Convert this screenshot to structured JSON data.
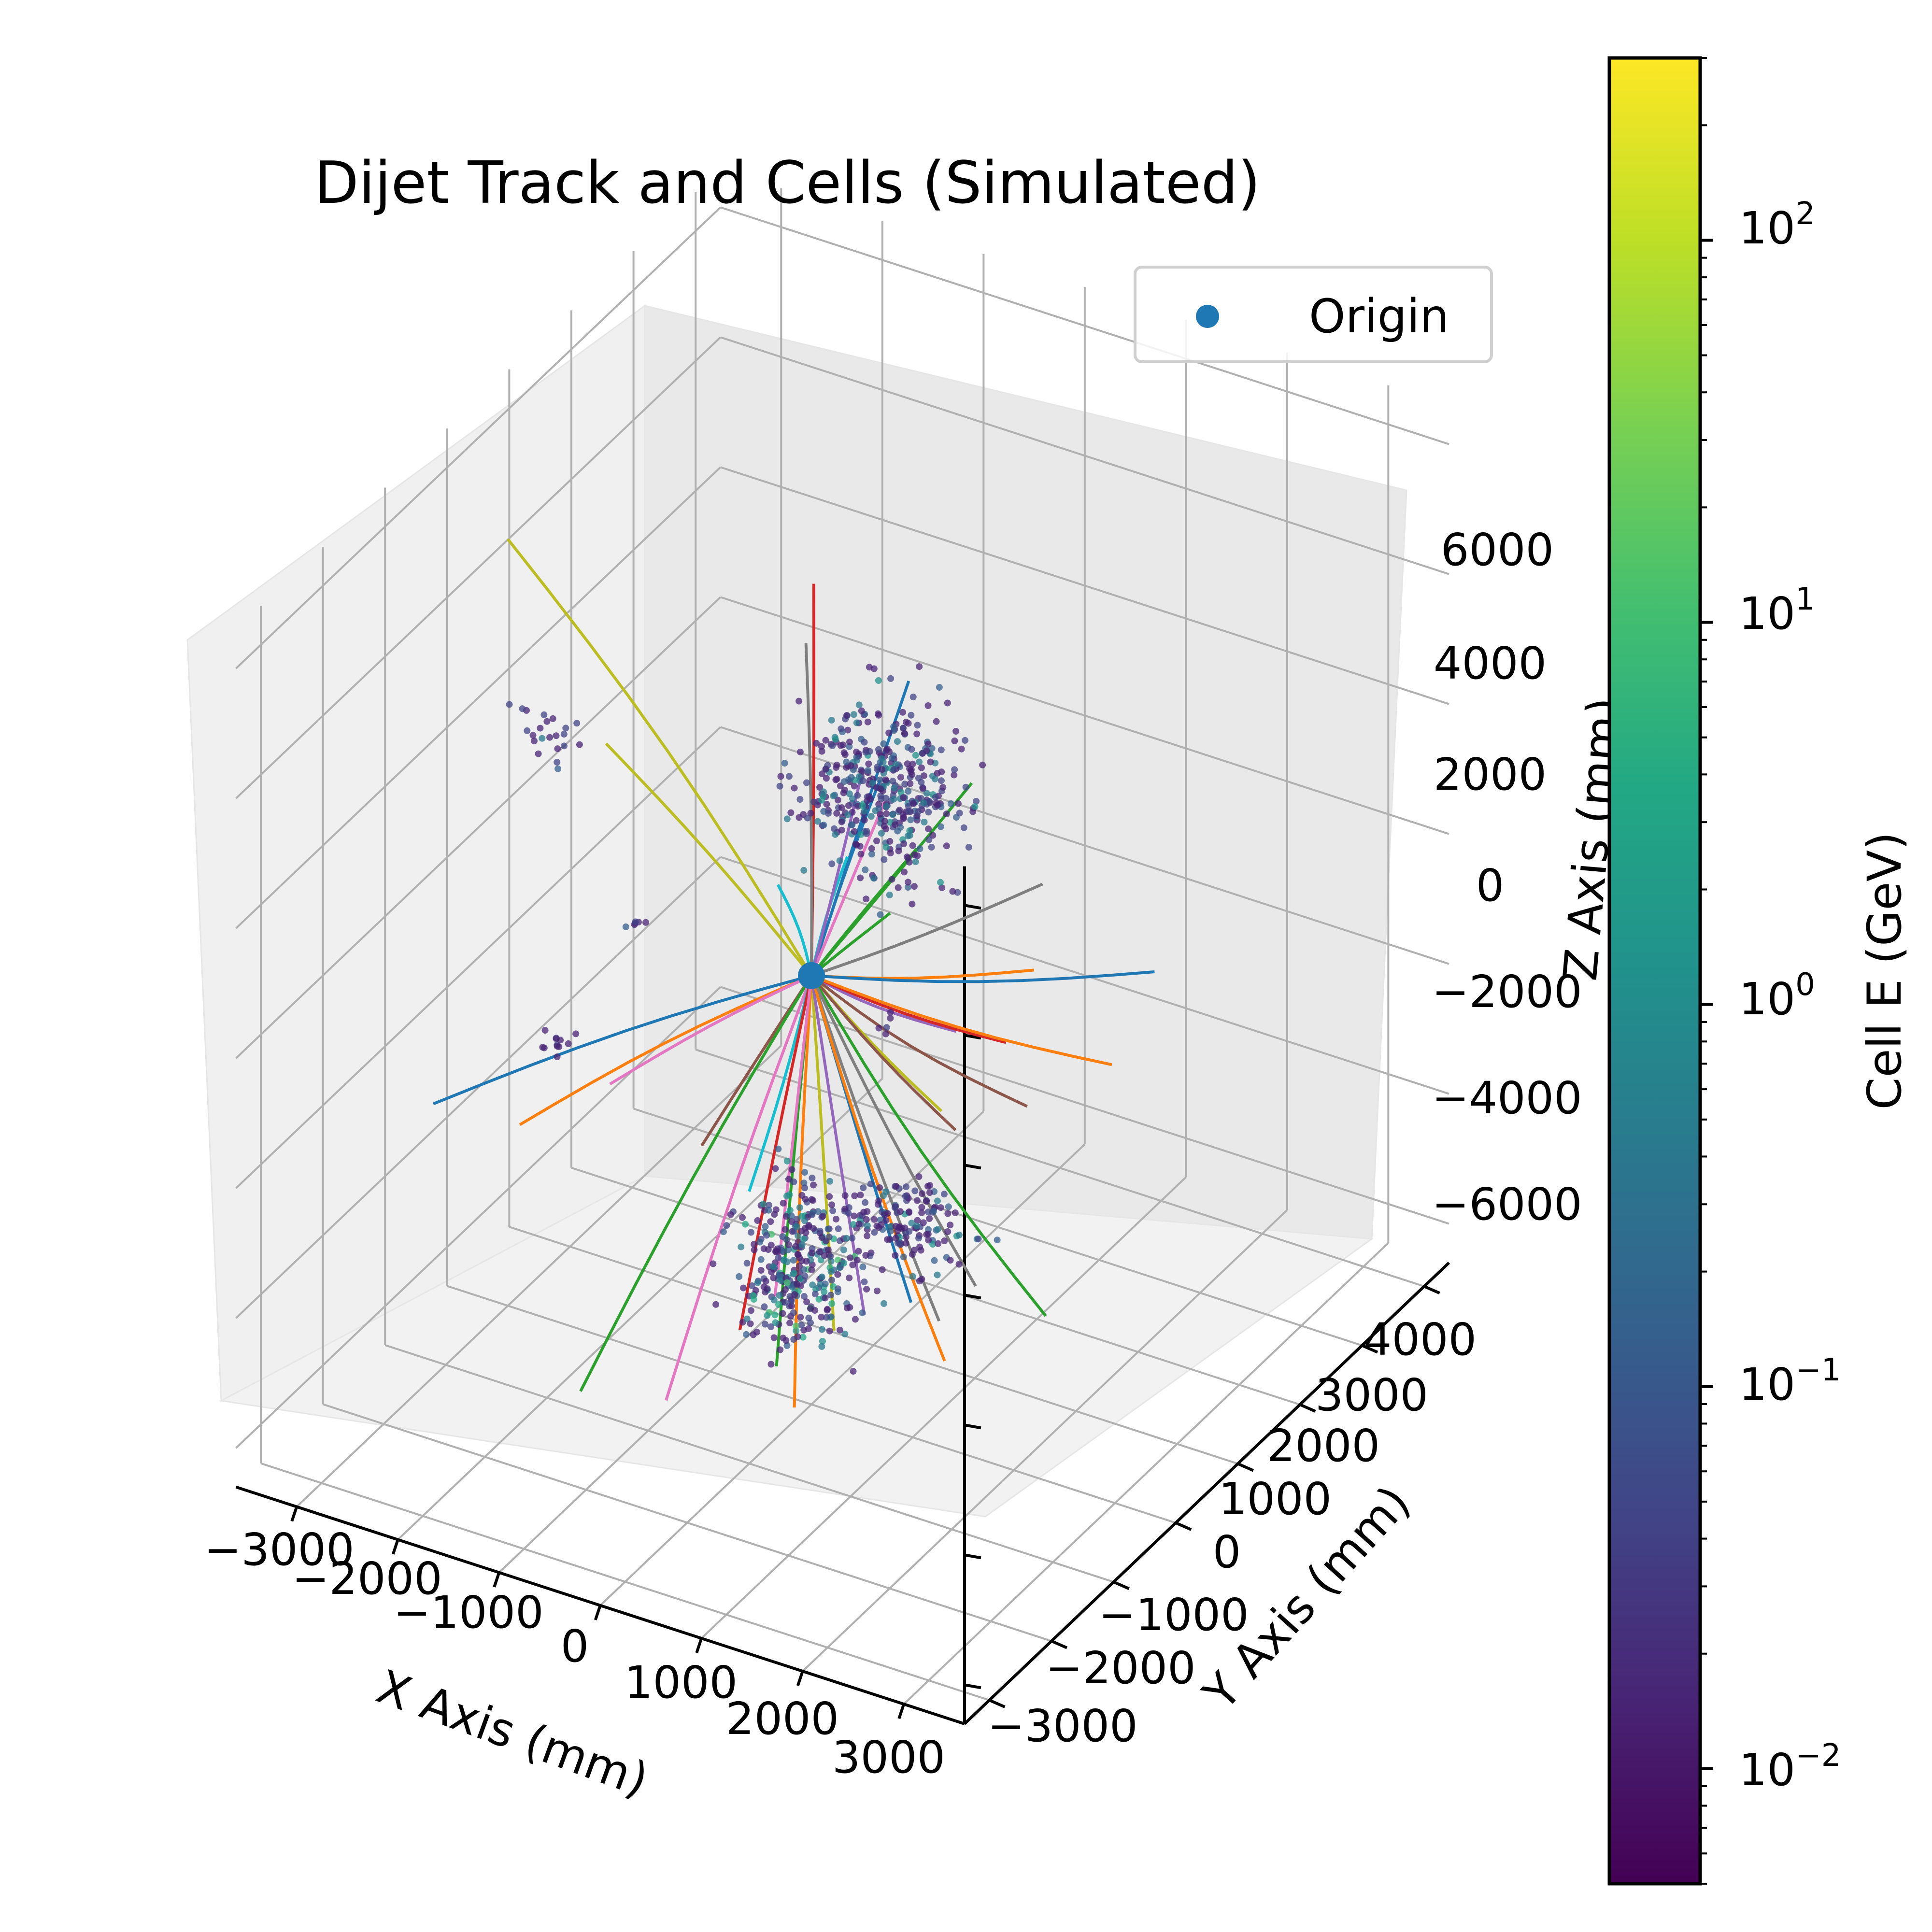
{
  "chart_data": {
    "type": "scatter",
    "title": "Dijet Track and Cells (Simulated)",
    "xlabel": "X Axis (mm)",
    "ylabel": "Y Axis (mm)",
    "zlabel": "Z Axis (mm)",
    "x_ticks": [
      "−3000",
      "−2000",
      "−1000",
      "0",
      "1000",
      "2000",
      "3000"
    ],
    "y_ticks": [
      "−3000",
      "−2000",
      "−1000",
      "0",
      "1000",
      "2000",
      "3000",
      "4000"
    ],
    "z_ticks": [
      "−6000",
      "−4000",
      "−2000",
      "0",
      "2000",
      "4000",
      "6000"
    ],
    "xlim": [
      -3600,
      3600
    ],
    "ylim": [
      -3400,
      4400
    ],
    "zlim": [
      -6600,
      6600
    ],
    "grid": true,
    "legend": {
      "position": "top-right",
      "entries": [
        {
          "label": "Origin",
          "color": "#1f77b4"
        }
      ]
    },
    "colorbar": {
      "label": "Cell E (GeV)",
      "scale": "log",
      "range": [
        0.005,
        300
      ],
      "ticks": [
        {
          "value": 0.01,
          "base": "10",
          "exp": "−2"
        },
        {
          "value": 0.1,
          "base": "10",
          "exp": "−1"
        },
        {
          "value": 1,
          "base": "10",
          "exp": "0"
        },
        {
          "value": 10,
          "base": "10",
          "exp": "1"
        },
        {
          "value": 100,
          "base": "10",
          "exp": "2"
        }
      ],
      "colormap": "viridis"
    },
    "origin": {
      "x": 0,
      "y": 0,
      "z": 0,
      "color": "#1f77b4"
    },
    "cell_clusters": [
      {
        "x": 400,
        "y": 500,
        "z": 2600,
        "spread": [
          700,
          600,
          1200
        ],
        "count": 420,
        "energy_range": [
          0.01,
          1
        ]
      },
      {
        "x": -200,
        "y": 100,
        "z": -4600,
        "spread": [
          500,
          500,
          1200
        ],
        "count": 320,
        "energy_range": [
          0.01,
          10
        ]
      },
      {
        "x": 500,
        "y": 700,
        "z": -4200,
        "spread": [
          600,
          400,
          600
        ],
        "count": 150,
        "energy_range": [
          0.01,
          1
        ]
      },
      {
        "x": -2600,
        "y": 0,
        "z": 2400,
        "spread": [
          300,
          300,
          400
        ],
        "count": 22,
        "energy_range": [
          0.01,
          0.3
        ]
      },
      {
        "x": -2200,
        "y": -500,
        "z": -1700,
        "spread": [
          150,
          150,
          200
        ],
        "count": 12,
        "energy_range": [
          0.01,
          0.1
        ]
      },
      {
        "x": -1500,
        "y": -400,
        "z": 400,
        "spread": [
          100,
          100,
          120
        ],
        "count": 6,
        "energy_range": [
          0.01,
          0.1
        ]
      },
      {
        "x": 1200,
        "y": -700,
        "z": 500,
        "spread": [
          100,
          100,
          120
        ],
        "count": 5,
        "energy_range": [
          0.01,
          0.1
        ]
      }
    ],
    "tracks": [
      {
        "color": "#bcbd22",
        "end": [
          -3000,
          0,
          5200
        ]
      },
      {
        "color": "#bcbd22",
        "end": [
          -1600,
          -700,
          3400
        ]
      },
      {
        "color": "#d62728",
        "end": [
          -100,
          200,
          5800
        ]
      },
      {
        "color": "#7f7f7f",
        "end": [
          -300,
          400,
          4600
        ]
      },
      {
        "color": "#1f77b4",
        "end": [
          900,
          100,
          4900
        ]
      },
      {
        "color": "#1f77b4",
        "end": [
          800,
          -200,
          3600
        ]
      },
      {
        "color": "#2ca02c",
        "end": [
          1400,
          300,
          3400
        ]
      },
      {
        "color": "#2ca02c",
        "end": [
          1100,
          -100,
          2600
        ]
      },
      {
        "color": "#17becf",
        "end": [
          600,
          -400,
          2500
        ]
      },
      {
        "color": "#7f7f7f",
        "end": [
          2100,
          300,
          2200
        ]
      },
      {
        "color": "#ff7f0e",
        "end": [
          2200,
          0,
          1200
        ]
      },
      {
        "color": "#1f77b4",
        "end": [
          2900,
          800,
          800
        ]
      },
      {
        "color": "#9467bd",
        "end": [
          1800,
          -600,
          600
        ]
      },
      {
        "color": "#8c564b",
        "end": [
          2500,
          -600,
          -200
        ]
      },
      {
        "color": "#d62728",
        "end": [
          1800,
          200,
          -300
        ]
      },
      {
        "color": "#ff7f0e",
        "end": [
          2600,
          600,
          -600
        ]
      },
      {
        "color": "#e377c2",
        "end": [
          600,
          200,
          2800
        ]
      },
      {
        "color": "#ff7f0e",
        "end": [
          -1900,
          -1600,
          -1800
        ]
      },
      {
        "color": "#1f77b4",
        "end": [
          -3000,
          -1200,
          -2400
        ]
      },
      {
        "color": "#e377c2",
        "end": [
          -1500,
          -800,
          -1700
        ]
      },
      {
        "color": "#8c564b",
        "end": [
          -900,
          -300,
          -2800
        ]
      },
      {
        "color": "#17becf",
        "end": [
          -700,
          600,
          500
        ]
      },
      {
        "color": "#bcbd22",
        "end": [
          1100,
          300,
          -1800
        ]
      },
      {
        "color": "#8c564b",
        "end": [
          1300,
          200,
          -1900
        ]
      },
      {
        "color": "#2ca02c",
        "end": [
          -1300,
          -1600,
          -5600
        ]
      },
      {
        "color": "#e377c2",
        "end": [
          -700,
          -1200,
          -5800
        ]
      },
      {
        "color": "#17becf",
        "end": [
          -800,
          300,
          -4000
        ]
      },
      {
        "color": "#2ca02c",
        "end": [
          -100,
          -400,
          -5700
        ]
      },
      {
        "color": "#bcbd22",
        "end": [
          100,
          200,
          -5600
        ]
      },
      {
        "color": "#ff7f0e",
        "end": [
          200,
          -600,
          -6000
        ]
      },
      {
        "color": "#9467bd",
        "end": [
          400,
          200,
          -5200
        ]
      },
      {
        "color": "#1f77b4",
        "end": [
          800,
          300,
          -4900
        ]
      },
      {
        "color": "#7f7f7f",
        "end": [
          1200,
          100,
          -4800
        ]
      },
      {
        "color": "#ff7f0e",
        "end": [
          1500,
          -300,
          -4900
        ]
      },
      {
        "color": "#2ca02c",
        "end": [
          2500,
          -300,
          -3700
        ]
      },
      {
        "color": "#7f7f7f",
        "end": [
          1500,
          200,
          -4200
        ]
      },
      {
        "color": "#d62728",
        "end": [
          -400,
          -500,
          -5200
        ]
      },
      {
        "color": "#e377c2",
        "end": [
          -300,
          -100,
          -5000
        ]
      },
      {
        "color": "#2ca02c",
        "end": [
          900,
          -200,
          1600
        ]
      },
      {
        "color": "#9467bd",
        "end": [
          300,
          300,
          2900
        ]
      }
    ]
  }
}
